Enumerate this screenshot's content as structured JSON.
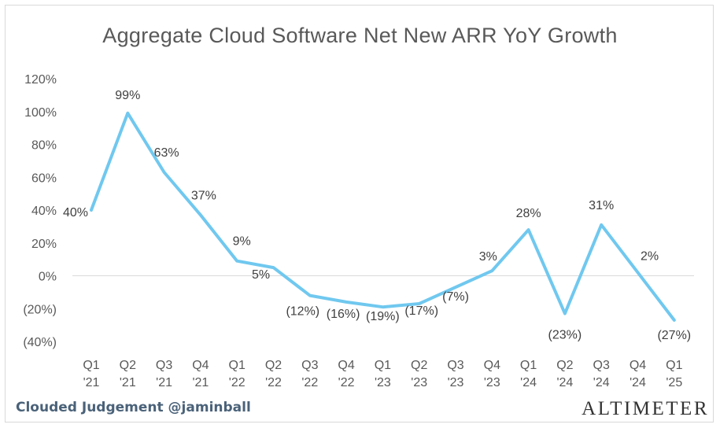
{
  "chart_data": {
    "type": "line",
    "title": "Aggregate Cloud Software Net New ARR YoY Growth",
    "categories": [
      "Q1 '21",
      "Q2 '21",
      "Q3 '21",
      "Q4 '21",
      "Q1 '22",
      "Q2 '22",
      "Q3 '22",
      "Q4 '22",
      "Q1 '23",
      "Q2 '23",
      "Q3 '23",
      "Q4 '23",
      "Q1 '24",
      "Q2 '24",
      "Q3 '24",
      "Q4 '24",
      "Q1 '25"
    ],
    "category_lines": [
      [
        "Q1",
        "'21"
      ],
      [
        "Q2",
        "'21"
      ],
      [
        "Q3",
        "'21"
      ],
      [
        "Q4",
        "'21"
      ],
      [
        "Q1",
        "'22"
      ],
      [
        "Q2",
        "'22"
      ],
      [
        "Q3",
        "'22"
      ],
      [
        "Q4",
        "'22"
      ],
      [
        "Q1",
        "'23"
      ],
      [
        "Q2",
        "'23"
      ],
      [
        "Q3",
        "'23"
      ],
      [
        "Q4",
        "'23"
      ],
      [
        "Q1",
        "'24"
      ],
      [
        "Q2",
        "'24"
      ],
      [
        "Q3",
        "'24"
      ],
      [
        "Q4",
        "'24"
      ],
      [
        "Q1",
        "'25"
      ]
    ],
    "values": [
      40,
      99,
      63,
      37,
      9,
      5,
      -12,
      -16,
      -19,
      -17,
      -7,
      3,
      28,
      -23,
      31,
      2,
      -27
    ],
    "data_labels": [
      "40%",
      "99%",
      "63%",
      "37%",
      "9%",
      "5%",
      "(12%)",
      "(16%)",
      "(19%)",
      "(17%)",
      "(7%)",
      "3%",
      "28%",
      "(23%)",
      "31%",
      "2%",
      "(27%)"
    ],
    "y_ticks": [
      120,
      100,
      80,
      60,
      40,
      20,
      0,
      -20,
      -40
    ],
    "y_tick_labels": [
      "120%",
      "100%",
      "80%",
      "60%",
      "40%",
      "20%",
      "0%",
      "(20%)",
      "(40%)"
    ],
    "ylim": [
      -40,
      120
    ],
    "grid": false,
    "legend": "none",
    "line_color": "#70c8ef",
    "zero_line_color": "#d9d9d9"
  },
  "footer": {
    "attribution": "Clouded Judgement @jaminball",
    "brand": "ALTIMETER"
  }
}
